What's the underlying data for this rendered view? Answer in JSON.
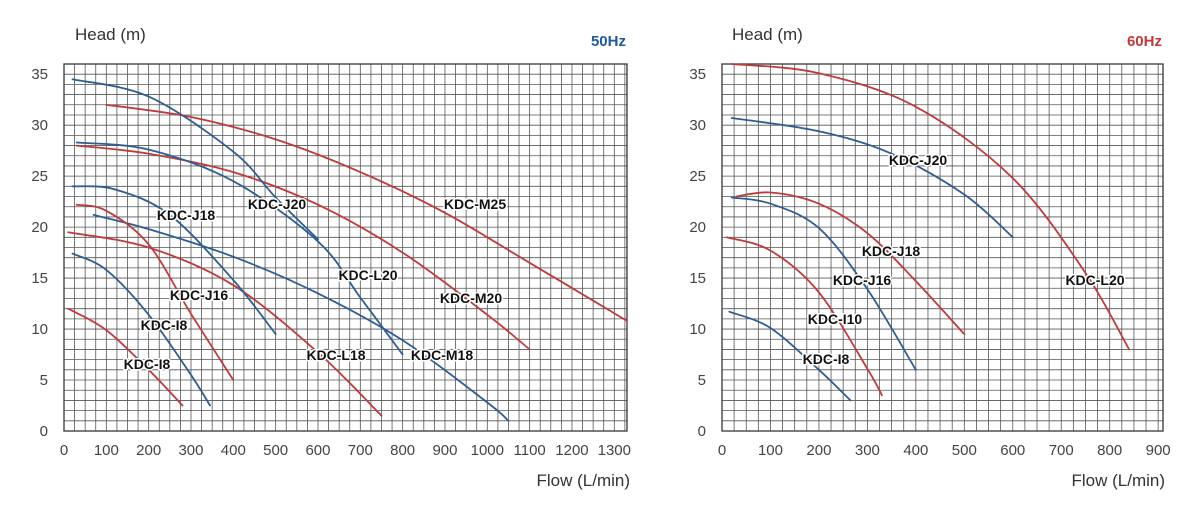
{
  "chart_data": [
    {
      "type": "line",
      "ylabel": "Head (m)",
      "xlabel": "Flow (L/min)",
      "frequency": "50Hz",
      "frequency_color": "#1d5a9c",
      "xlim": [
        0,
        1330
      ],
      "ylim": [
        0,
        36
      ],
      "xticks": [
        0,
        100,
        200,
        300,
        400,
        500,
        600,
        700,
        800,
        900,
        1000,
        1100,
        1200,
        1300
      ],
      "yticks": [
        0,
        5,
        10,
        15,
        20,
        25,
        30,
        35
      ],
      "series": [
        {
          "name": "KDC-M25",
          "color": "#c0393b",
          "x": [
            100,
            300,
            500,
            700,
            900,
            1100,
            1330
          ],
          "y": [
            32,
            30.8,
            28.6,
            25.4,
            21.4,
            16.5,
            10.8
          ]
        },
        {
          "name": "KDC-M20",
          "color": "#c0393b",
          "x": [
            30,
            200,
            400,
            600,
            800,
            1000,
            1100
          ],
          "y": [
            28,
            27.2,
            25.4,
            22.2,
            17.5,
            11.4,
            8
          ]
        },
        {
          "name": "KDC-M18",
          "color": "#2d5e93",
          "x": [
            70,
            200,
            400,
            600,
            800,
            1000,
            1050
          ],
          "y": [
            21.2,
            19.8,
            17.1,
            13.5,
            8.9,
            2.8,
            1
          ]
        },
        {
          "name": "KDC-L20",
          "color": "#2d5e93",
          "x": [
            30,
            200,
            400,
            600,
            700,
            800
          ],
          "y": [
            28.3,
            27.6,
            24.5,
            18.6,
            13.1,
            7.5
          ]
        },
        {
          "name": "KDC-L18",
          "color": "#c0393b",
          "x": [
            10,
            200,
            400,
            600,
            750
          ],
          "y": [
            19.5,
            18,
            14.3,
            7.7,
            1.5
          ]
        },
        {
          "name": "KDC-J20",
          "color": "#2d5e93",
          "x": [
            20,
            200,
            400,
            500,
            600
          ],
          "y": [
            34.5,
            32.8,
            27.4,
            22.9,
            18.8
          ]
        },
        {
          "name": "KDC-J18",
          "color": "#2d5e93",
          "x": [
            20,
            120,
            250,
            400,
            500
          ],
          "y": [
            24,
            23.7,
            21.2,
            14.8,
            9.5
          ]
        },
        {
          "name": "KDC-J16",
          "color": "#c0393b",
          "x": [
            30,
            100,
            200,
            300,
            400
          ],
          "y": [
            22.2,
            21.6,
            18.3,
            11.5,
            5
          ]
        },
        {
          "name": "KDC-I8",
          "color": "#2d5e93",
          "x": [
            20,
            100,
            200,
            300,
            345
          ],
          "y": [
            17.4,
            15.8,
            11.4,
            5.5,
            2.5
          ]
        },
        {
          "name": "KDC-I8",
          "color": "#c0393b",
          "x": [
            10,
            100,
            200,
            280
          ],
          "y": [
            12,
            9.9,
            6,
            2.5
          ]
        }
      ],
      "annotations": [
        "KDC-M25",
        "KDC-J20",
        "KDC-J18",
        "KDC-L20",
        "KDC-J16",
        "KDC-M20",
        "KDC-I8",
        "KDC-L18",
        "KDC-M18",
        "KDC-I8"
      ]
    },
    {
      "type": "line",
      "ylabel": "Head (m)",
      "xlabel": "Flow (L/min)",
      "frequency": "60Hz",
      "frequency_color": "#c0393b",
      "xlim": [
        0,
        910
      ],
      "ylim": [
        0,
        36
      ],
      "xticks": [
        0,
        100,
        200,
        300,
        400,
        500,
        600,
        700,
        800,
        900
      ],
      "yticks": [
        0,
        5,
        10,
        15,
        20,
        25,
        30,
        35
      ],
      "series": [
        {
          "name": "KDC-L20",
          "color": "#c0393b",
          "x": [
            20,
            200,
            400,
            600,
            750,
            840
          ],
          "y": [
            36,
            35.1,
            31.8,
            24.8,
            15.5,
            8
          ]
        },
        {
          "name": "KDC-J20",
          "color": "#2d5e93",
          "x": [
            20,
            200,
            350,
            500,
            600
          ],
          "y": [
            30.7,
            29.4,
            27.2,
            23.2,
            19
          ]
        },
        {
          "name": "KDC-J18",
          "color": "#c0393b",
          "x": [
            30,
            100,
            200,
            300,
            400,
            500
          ],
          "y": [
            23,
            23.4,
            22.3,
            19.4,
            14.7,
            9.5
          ]
        },
        {
          "name": "KDC-J16",
          "color": "#2d5e93",
          "x": [
            20,
            100,
            200,
            300,
            400
          ],
          "y": [
            22.9,
            22.3,
            19.9,
            13.9,
            6
          ]
        },
        {
          "name": "KDC-I10",
          "color": "#c0393b",
          "x": [
            10,
            100,
            200,
            300,
            330
          ],
          "y": [
            19,
            17.7,
            13.6,
            6.1,
            3.5
          ]
        },
        {
          "name": "KDC-I8",
          "color": "#2d5e93",
          "x": [
            15,
            100,
            200,
            265
          ],
          "y": [
            11.7,
            10.1,
            6,
            3
          ]
        }
      ],
      "annotations": [
        "KDC-J20",
        "KDC-J18",
        "KDC-J16",
        "KDC-L20",
        "KDC-I10",
        "KDC-I8"
      ]
    }
  ]
}
